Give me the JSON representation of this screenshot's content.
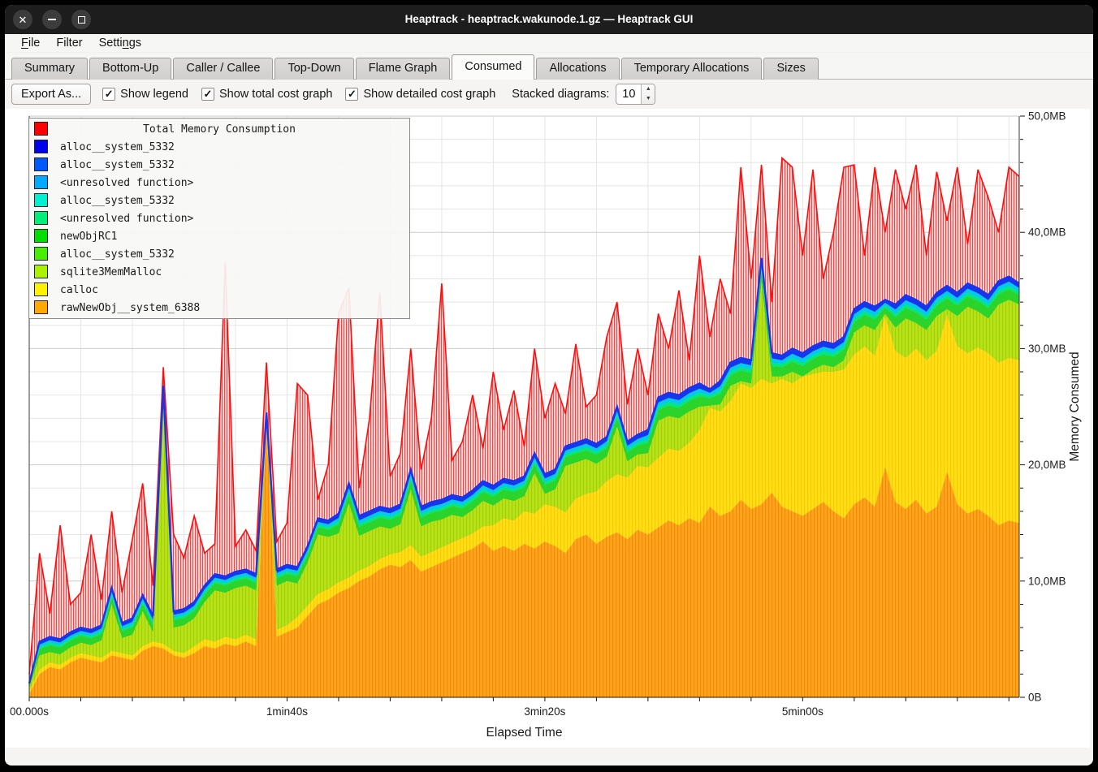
{
  "window": {
    "title": "Heaptrack - heaptrack.wakunode.1.gz — Heaptrack GUI",
    "controls": [
      {
        "name": "close"
      },
      {
        "name": "minimize"
      },
      {
        "name": "maximize"
      }
    ]
  },
  "menu": {
    "items": [
      {
        "label": "File",
        "mnemonic_index": 0
      },
      {
        "label": "Filter",
        "mnemonic_index": -1
      },
      {
        "label": "Settings",
        "mnemonic_index": 5
      }
    ]
  },
  "tabs": [
    {
      "label": "Summary",
      "active": false
    },
    {
      "label": "Bottom-Up",
      "active": false
    },
    {
      "label": "Caller / Callee",
      "active": false
    },
    {
      "label": "Top-Down",
      "active": false
    },
    {
      "label": "Flame Graph",
      "active": false
    },
    {
      "label": "Consumed",
      "active": true
    },
    {
      "label": "Allocations",
      "active": false
    },
    {
      "label": "Temporary Allocations",
      "active": false
    },
    {
      "label": "Sizes",
      "active": false
    }
  ],
  "toolbar": {
    "export_label": "Export As...",
    "checkboxes": [
      {
        "label": "Show legend",
        "checked": true
      },
      {
        "label": "Show total cost graph",
        "checked": true
      },
      {
        "label": "Show detailed cost graph",
        "checked": true
      }
    ],
    "stacked_label": "Stacked diagrams:",
    "stacked_value": "10"
  },
  "chart_data": {
    "type": "area",
    "stacked": true,
    "legend_title": "Total Memory Consumption",
    "legend_title_color": "#ff0000",
    "series": [
      {
        "name": "alloc__system_5332",
        "color": "#0000ee"
      },
      {
        "name": "alloc__system_5332",
        "color": "#0058ff"
      },
      {
        "name": "<unresolved function>",
        "color": "#00aaff"
      },
      {
        "name": "alloc__system_5332",
        "color": "#00efd0"
      },
      {
        "name": "<unresolved function>",
        "color": "#00ef7a"
      },
      {
        "name": "newObjRC1",
        "color": "#00dd00"
      },
      {
        "name": "alloc__system_5332",
        "color": "#47ee00"
      },
      {
        "name": "sqlite3MemMalloc",
        "color": "#abf200"
      },
      {
        "name": "calloc",
        "color": "#fff200"
      },
      {
        "name": "rawNewObj__system_6388",
        "color": "#ffa800"
      }
    ],
    "xlabel": "Elapsed Time",
    "ylabel": "Memory Consumed",
    "x_max_seconds": 384,
    "x_minor_step": 20,
    "x_ticks": [
      {
        "t": 0,
        "label": "00.000s"
      },
      {
        "t": 100,
        "label": "1min40s"
      },
      {
        "t": 200,
        "label": "3min20s"
      },
      {
        "t": 300,
        "label": "5min00s"
      }
    ],
    "ylim": [
      0,
      50
    ],
    "y_minor_step": 2,
    "y_ticks": [
      {
        "v": 0,
        "label": "0B"
      },
      {
        "v": 10,
        "label": "10,0MB"
      },
      {
        "v": 20,
        "label": "20,0MB"
      },
      {
        "v": 30,
        "label": "30,0MB"
      },
      {
        "v": 40,
        "label": "40,0MB"
      },
      {
        "v": 50,
        "label": "50,0MB"
      }
    ],
    "grid": true,
    "legend_position": "top-left-overlay",
    "dt_seconds": 4,
    "n_points": 97,
    "total_mb": [
      2.0,
      12.4,
      7.2,
      14.8,
      8.0,
      9.0,
      14.0,
      8.4,
      16.0,
      9.0,
      13.6,
      18.4,
      9.6,
      28.4,
      14.0,
      12.0,
      15.6,
      12.4,
      13.2,
      37.4,
      13.0,
      14.4,
      12.6,
      28.8,
      13.4,
      15.0,
      27.0,
      26.0,
      17.0,
      20.0,
      33.0,
      35.2,
      18.0,
      24.0,
      34.8,
      19.0,
      21.0,
      30.0,
      19.6,
      24.0,
      35.6,
      20.4,
      22.0,
      26.0,
      21.4,
      28.0,
      23.0,
      26.4,
      21.6,
      30.0,
      24.0,
      27.0,
      24.4,
      30.4,
      25.0,
      26.0,
      31.0,
      34.0,
      25.2,
      30.0,
      26.0,
      33.0,
      30.0,
      35.0,
      29.0,
      38.0,
      31.0,
      36.0,
      33.0,
      45.6,
      36.0,
      45.8,
      34.0,
      46.4,
      45.6,
      38.0,
      45.4,
      36.0,
      40.0,
      45.6,
      45.8,
      38.0,
      45.6,
      40.0,
      45.4,
      42.0,
      45.8,
      38.0,
      45.2,
      41.0,
      45.6,
      39.0,
      45.4,
      43.0,
      40.0,
      45.6,
      44.8
    ],
    "layers_cumulative_mb": {
      "rawNewObj_top": [
        0.3,
        2.0,
        2.6,
        2.4,
        3.0,
        3.4,
        3.2,
        3.0,
        3.6,
        3.4,
        3.2,
        4.0,
        4.4,
        4.2,
        3.6,
        3.4,
        3.8,
        4.4,
        4.2,
        4.6,
        4.4,
        4.8,
        4.4,
        23.5,
        5.2,
        5.6,
        6.0,
        7.0,
        8.0,
        8.4,
        9.0,
        9.4,
        10.0,
        10.4,
        11.0,
        11.4,
        11.2,
        11.8,
        10.8,
        11.2,
        11.6,
        12.0,
        12.4,
        12.8,
        13.4,
        12.6,
        13.0,
        12.6,
        13.2,
        12.8,
        13.4,
        13.0,
        12.4,
        13.6,
        14.0,
        13.2,
        13.8,
        14.2,
        13.6,
        14.4,
        14.0,
        14.6,
        15.2,
        14.8,
        15.4,
        15.0,
        16.4,
        15.6,
        16.0,
        17.0,
        16.2,
        16.6,
        17.6,
        16.4,
        16.0,
        15.6,
        16.2,
        16.8,
        16.0,
        15.4,
        16.6,
        17.2,
        16.4,
        19.8,
        16.8,
        16.2,
        17.0,
        15.8,
        16.4,
        19.4,
        16.6,
        15.8,
        16.2,
        15.6,
        14.8,
        15.2,
        15.0
      ],
      "calloc_top": [
        0.5,
        2.4,
        3.0,
        2.8,
        3.4,
        3.8,
        3.6,
        3.4,
        4.0,
        3.8,
        3.6,
        4.4,
        4.8,
        4.6,
        4.0,
        3.8,
        4.4,
        5.0,
        4.8,
        5.2,
        5.0,
        5.4,
        5.0,
        24.0,
        5.8,
        6.2,
        6.9,
        7.9,
        8.9,
        9.3,
        9.9,
        10.3,
        10.9,
        11.3,
        11.9,
        12.3,
        12.5,
        13.1,
        12.1,
        12.5,
        12.9,
        13.3,
        13.7,
        14.1,
        14.7,
        14.8,
        15.4,
        15.2,
        16.0,
        15.8,
        16.6,
        16.4,
        15.9,
        17.1,
        17.5,
        17.7,
        18.6,
        19.2,
        18.9,
        19.9,
        19.8,
        20.6,
        21.4,
        21.2,
        21.9,
        23.0,
        24.9,
        24.6,
        25.5,
        27.0,
        26.6,
        27.4,
        27.0,
        27.4,
        27.0,
        27.6,
        27.8,
        28.0,
        28.0,
        28.2,
        29.5,
        30.2,
        29.4,
        32.8,
        29.8,
        29.2,
        30.0,
        29.0,
        29.8,
        32.9,
        30.2,
        29.6,
        30.1,
        29.6,
        28.8,
        29.2,
        29.0
      ],
      "sqlite3MemMalloc_top": [
        0.8,
        3.6,
        3.9,
        3.7,
        4.3,
        4.7,
        4.5,
        4.9,
        8.0,
        5.1,
        5.4,
        7.4,
        5.6,
        25.4,
        6.0,
        6.2,
        6.8,
        8.2,
        9.2,
        9.0,
        9.4,
        9.6,
        9.2,
        24.2,
        9.6,
        10.0,
        9.8,
        11.6,
        14.0,
        13.8,
        14.1,
        16.7,
        13.9,
        14.3,
        14.7,
        14.5,
        14.9,
        17.9,
        14.7,
        15.1,
        15.3,
        15.7,
        15.5,
        16.1,
        16.9,
        16.5,
        17.1,
        16.9,
        17.3,
        19.3,
        17.5,
        17.9,
        19.9,
        20.2,
        20.5,
        20.1,
        20.7,
        23.3,
        20.3,
        20.9,
        21.0,
        23.8,
        24.2,
        24.0,
        24.6,
        25.0,
        25.1,
        25.2,
        26.8,
        27.2,
        27.0,
        35.8,
        27.6,
        27.6,
        28.0,
        27.6,
        28.2,
        28.6,
        28.4,
        29.0,
        31.4,
        32.0,
        31.6,
        33.0,
        31.8,
        32.6,
        32.2,
        31.6,
        32.8,
        33.4,
        32.8,
        33.6,
        33.2,
        32.6,
        33.8,
        34.2,
        33.8
      ],
      "stack_top": [
        1.2,
        4.8,
        5.2,
        5.0,
        5.6,
        6.0,
        5.8,
        6.2,
        9.4,
        6.4,
        6.8,
        8.8,
        7.0,
        26.8,
        7.4,
        7.6,
        8.2,
        9.6,
        10.6,
        10.4,
        10.8,
        11.0,
        10.6,
        24.5,
        11.0,
        11.4,
        11.2,
        13.0,
        15.4,
        15.2,
        15.8,
        18.4,
        15.6,
        16.0,
        16.4,
        16.2,
        16.6,
        19.6,
        16.4,
        16.8,
        17.0,
        17.4,
        17.2,
        17.8,
        18.6,
        18.2,
        18.8,
        18.6,
        19.0,
        21.0,
        19.2,
        19.6,
        21.6,
        21.9,
        22.2,
        21.8,
        22.4,
        25.0,
        22.0,
        22.6,
        23.0,
        25.8,
        26.2,
        26.0,
        26.6,
        27.0,
        26.5,
        27.2,
        28.8,
        29.2,
        29.0,
        37.8,
        29.6,
        29.4,
        30.0,
        29.6,
        30.2,
        30.6,
        30.4,
        31.0,
        33.4,
        34.0,
        33.6,
        34.2,
        33.8,
        34.6,
        34.2,
        33.6,
        34.8,
        35.4,
        34.8,
        35.6,
        35.2,
        34.6,
        35.8,
        36.2,
        35.6
      ]
    },
    "upper_band_fractions": {
      "green": 0.45,
      "spring": 0.15,
      "cyan": 0.18,
      "blue": 0.22
    },
    "colors": {
      "red_line": "#ff0d0d",
      "red_fill": "#ffd8d8",
      "red_hatch": "#ff4040",
      "orange": "#ffa41c",
      "orange_hatch": "#ee8b05",
      "yellow": "#ffdf14",
      "yellow_hatch": "#f2ca08",
      "ygreen": "#b6e216",
      "ygreen_hatch": "#a2cd0e",
      "green": "#2bd42b",
      "spring": "#00e87e",
      "cyan": "#00c9f2",
      "blue": "#1636ee",
      "grid_minor": "#e5e5e5",
      "grid_major": "#cbcbcb",
      "axis": "#3a3a3a"
    }
  }
}
